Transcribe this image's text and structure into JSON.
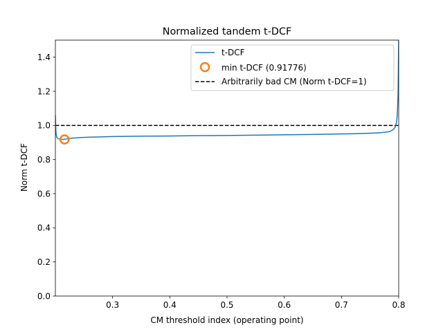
{
  "chart_data": {
    "type": "line",
    "title": "Normalized tandem t-DCF",
    "xlabel": "CM threshold index (operating point)",
    "ylabel": "Norm t-DCF",
    "xlim": [
      0.2,
      0.8
    ],
    "ylim": [
      0.0,
      1.5
    ],
    "xticks": [
      0.3,
      0.4,
      0.5,
      0.6,
      0.7,
      0.8
    ],
    "xtick_labels": [
      "0.3",
      "0.4",
      "0.5",
      "0.6",
      "0.7",
      "0.8"
    ],
    "yticks": [
      0.0,
      0.2,
      0.4,
      0.6,
      0.8,
      1.0,
      1.2,
      1.4
    ],
    "ytick_labels": [
      "0.0",
      "0.2",
      "0.4",
      "0.6",
      "0.8",
      "1.0",
      "1.2",
      "1.4"
    ],
    "grid": false,
    "legend_position": "top-right",
    "series": [
      {
        "name": "t-DCF",
        "color": "#1f77b4",
        "x": [
          0.2,
          0.2005,
          0.201,
          0.2015,
          0.202,
          0.203,
          0.205,
          0.208,
          0.212,
          0.216,
          0.22,
          0.225,
          0.23,
          0.24,
          0.25,
          0.27,
          0.3,
          0.35,
          0.4,
          0.45,
          0.5,
          0.55,
          0.6,
          0.65,
          0.7,
          0.72,
          0.74,
          0.76,
          0.77,
          0.78,
          0.785,
          0.79,
          0.793,
          0.795,
          0.797,
          0.798,
          0.799,
          0.7995,
          0.8
        ],
        "y": [
          1.06,
          1.0,
          0.96,
          0.945,
          0.935,
          0.928,
          0.922,
          0.92,
          0.918,
          0.919,
          0.921,
          0.924,
          0.926,
          0.928,
          0.93,
          0.932,
          0.935,
          0.937,
          0.938,
          0.94,
          0.941,
          0.943,
          0.945,
          0.947,
          0.95,
          0.951,
          0.953,
          0.956,
          0.958,
          0.962,
          0.965,
          0.975,
          0.985,
          1.0,
          1.04,
          1.1,
          1.2,
          1.35,
          1.5
        ]
      },
      {
        "name": "min t-DCF (0.91776)",
        "color": "#ff7f0e",
        "marker": "circle",
        "x": [
          0.216
        ],
        "y": [
          0.91776
        ]
      },
      {
        "name": "Arbitrarily bad CM (Norm t-DCF=1)",
        "color": "#000000",
        "linestyle": "dashed",
        "x": [
          0.2,
          0.8
        ],
        "y": [
          1.0,
          1.0
        ]
      }
    ]
  }
}
